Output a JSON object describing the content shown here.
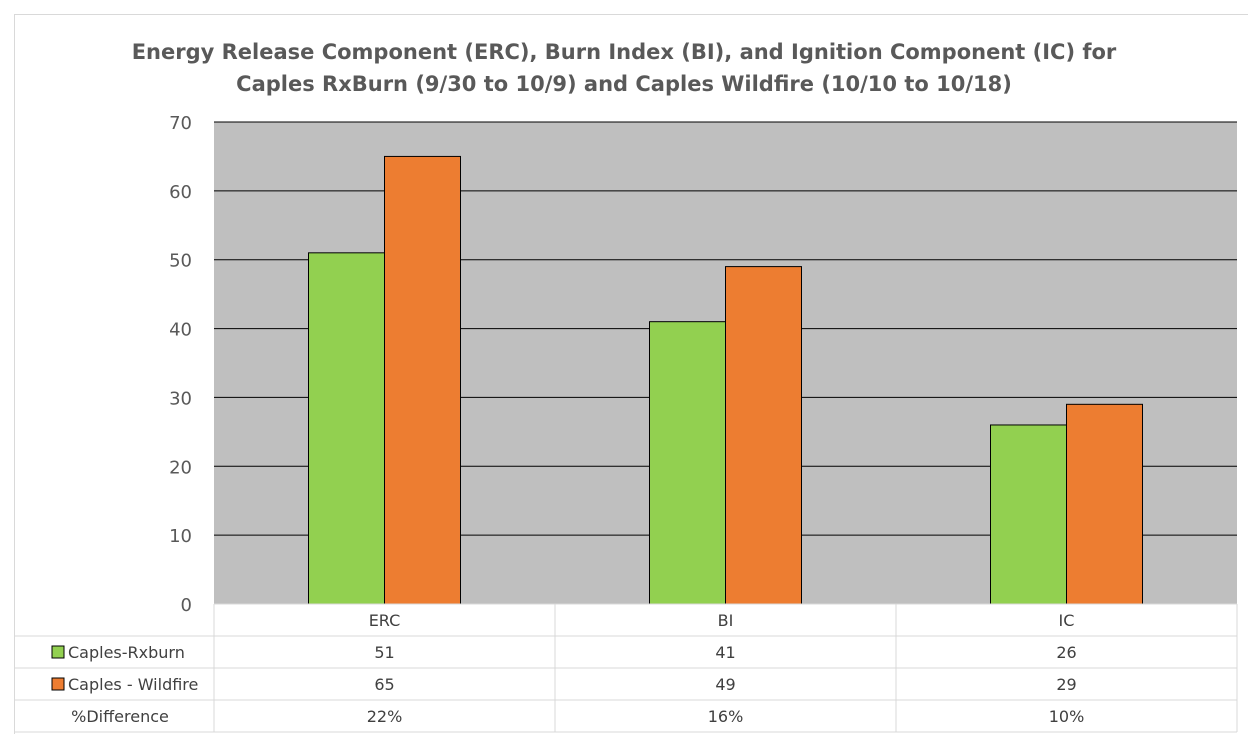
{
  "chart_data": {
    "type": "bar",
    "title_lines": [
      "Energy Release Component (ERC), Burn Index (BI), and Ignition Component (IC) for",
      "Caples RxBurn (9/30 to 10/9) and Caples Wildfire (10/10 to 10/18)"
    ],
    "categories": [
      "ERC",
      "BI",
      "IC"
    ],
    "series": [
      {
        "name": "Caples-Rxburn",
        "values": [
          51,
          41,
          26
        ],
        "color": "#92d050"
      },
      {
        "name": "Caples - Wildfire",
        "values": [
          65,
          49,
          29
        ],
        "color": "#ed7d31"
      }
    ],
    "ylim": [
      0,
      70
    ],
    "yticks": [
      0,
      10,
      20,
      30,
      40,
      50,
      60,
      70
    ],
    "grid": true,
    "plot_background": "#bfbfbf",
    "data_table": {
      "extra_row": {
        "label": "%Difference",
        "values": [
          "22%",
          "16%",
          "10%"
        ]
      }
    }
  }
}
